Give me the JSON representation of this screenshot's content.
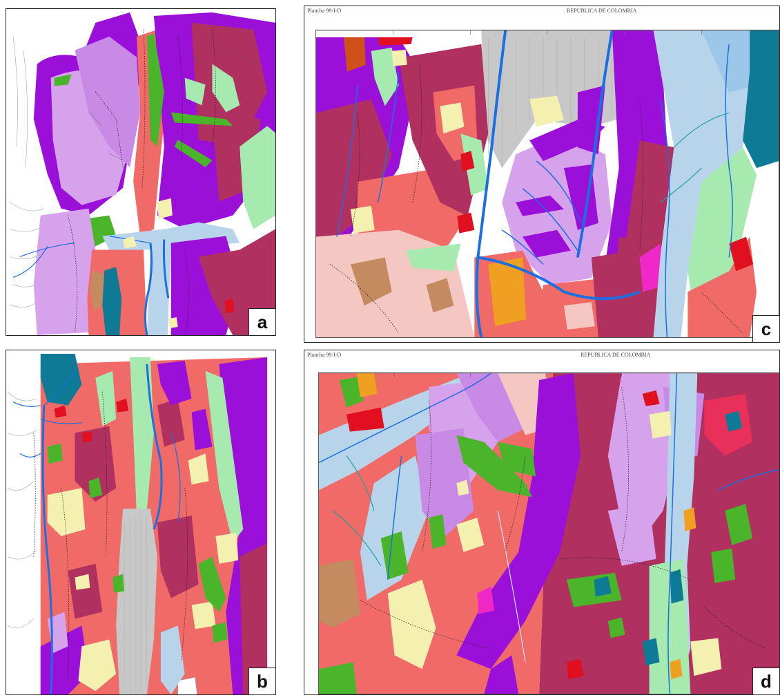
{
  "panels": [
    {
      "id": "a",
      "label": "a"
    },
    {
      "id": "b",
      "label": "b"
    },
    {
      "id": "c",
      "label": "c",
      "sheet_left": "Plancha 99-I-D",
      "sheet_center": "REPUBLICA DE COLOMBIA"
    },
    {
      "id": "d",
      "label": "d",
      "sheet_left": "Plancha 99-I-D",
      "sheet_center": "REPUBLICA DE COLOMBIA"
    }
  ],
  "colors": {
    "purple": "#9a10d8",
    "dark_magenta": "#b0305f",
    "salmon": "#f06a68",
    "lavender": "#d7a2ec",
    "light_purple": "#c98ae6",
    "light_blue": "#b8d4ea",
    "river_blue": "#1b6fe0",
    "green": "#4ab52a",
    "light_green": "#a6eab0",
    "pale_yellow": "#f4f1b0",
    "pink": "#f5c7c2",
    "grey": "#c8c8c8",
    "teal": "#0f7a95",
    "red": "#e01020",
    "orange": "#f0a020",
    "brown": "#c48a60",
    "hot_pink": "#f028c8"
  }
}
